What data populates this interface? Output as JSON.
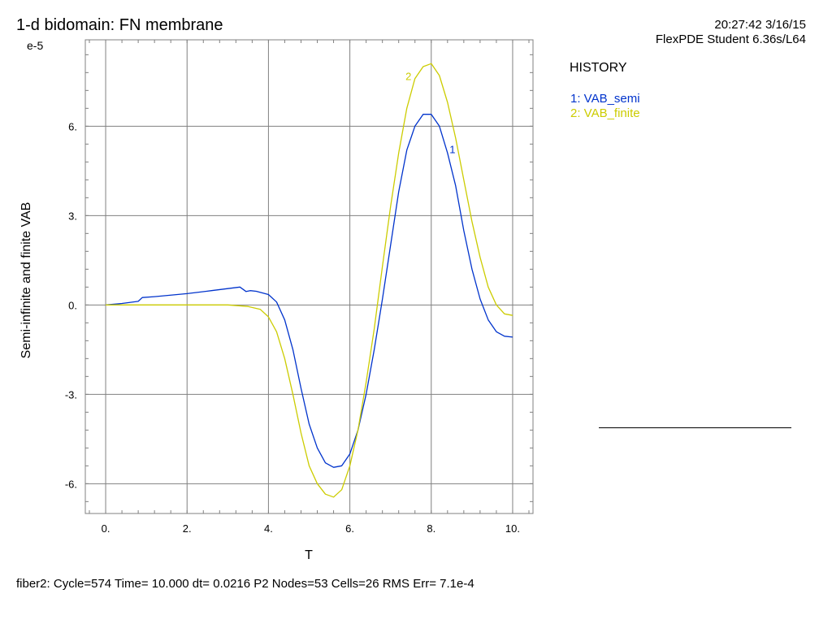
{
  "header": {
    "title": "1-d bidomain: FN membrane",
    "timestamp": "20:27:42 3/16/15",
    "product": "FlexPDE Student 6.36s/L64"
  },
  "legend": {
    "heading": "HISTORY",
    "entries": [
      {
        "label": "1: VAB_semi",
        "color": "#0033cc"
      },
      {
        "label": "2: VAB_finite",
        "color": "#cccc00"
      }
    ]
  },
  "status": "fiber2:  Cycle=574  Time= 10.000  dt= 0.0216  P2  Nodes=53 Cells=26 RMS Err= 7.1e-4",
  "chart_data": {
    "type": "line",
    "title": "1-d bidomain: FN membrane",
    "xlabel": "T",
    "ylabel": "Semi-infinite and finite VAB",
    "y_exponent_label": "e-5",
    "xlim": [
      -0.5,
      10.5
    ],
    "ylim": [
      -7.0,
      8.9
    ],
    "x_ticks": [
      0,
      2,
      4,
      6,
      8,
      10
    ],
    "x_tick_labels": [
      "0.",
      "2.",
      "4.",
      "6.",
      "8.",
      "10."
    ],
    "y_ticks": [
      -6,
      -3,
      0,
      3,
      6
    ],
    "y_tick_labels": [
      "-6.",
      "-3.",
      "0.",
      "3.",
      "6."
    ],
    "grid": true,
    "legend_position": "right",
    "series": [
      {
        "name": "VAB_semi",
        "marker_label": "1",
        "color": "#0033cc",
        "x": [
          0,
          0.4,
          0.8,
          0.9,
          1.2,
          2,
          2.6,
          3,
          3.3,
          3.45,
          3.55,
          3.7,
          4,
          4.2,
          4.4,
          4.6,
          4.8,
          5,
          5.2,
          5.4,
          5.6,
          5.8,
          6,
          6.2,
          6.4,
          6.6,
          6.8,
          7,
          7.2,
          7.4,
          7.6,
          7.8,
          8,
          8.2,
          8.4,
          8.6,
          8.8,
          9,
          9.2,
          9.4,
          9.6,
          9.8,
          10
        ],
        "y": [
          0,
          0.05,
          0.12,
          0.25,
          0.28,
          0.38,
          0.48,
          0.55,
          0.6,
          0.45,
          0.48,
          0.46,
          0.35,
          0.1,
          -0.5,
          -1.5,
          -2.8,
          -4.0,
          -4.8,
          -5.3,
          -5.45,
          -5.4,
          -5.0,
          -4.2,
          -3.0,
          -1.5,
          0.2,
          2.0,
          3.8,
          5.2,
          6.0,
          6.4,
          6.4,
          6.0,
          5.1,
          4.0,
          2.5,
          1.2,
          0.2,
          -0.5,
          -0.9,
          -1.05,
          -1.08
        ]
      },
      {
        "name": "VAB_finite",
        "marker_label": "2",
        "color": "#cccc00",
        "x": [
          0,
          1,
          2,
          3,
          3.5,
          3.8,
          4.0,
          4.2,
          4.4,
          4.6,
          4.8,
          5,
          5.2,
          5.4,
          5.6,
          5.8,
          6,
          6.2,
          6.4,
          6.6,
          6.8,
          7,
          7.2,
          7.4,
          7.6,
          7.8,
          8,
          8.2,
          8.4,
          8.6,
          8.8,
          9,
          9.2,
          9.4,
          9.6,
          9.8,
          10
        ],
        "y": [
          0,
          0,
          0,
          0,
          -0.05,
          -0.15,
          -0.4,
          -0.9,
          -1.8,
          -3.0,
          -4.3,
          -5.4,
          -6.0,
          -6.35,
          -6.45,
          -6.2,
          -5.4,
          -4.2,
          -2.6,
          -0.8,
          1.3,
          3.3,
          5.1,
          6.6,
          7.6,
          8.0,
          8.1,
          7.7,
          6.8,
          5.6,
          4.2,
          2.8,
          1.6,
          0.6,
          0.0,
          -0.3,
          -0.35
        ]
      }
    ]
  }
}
